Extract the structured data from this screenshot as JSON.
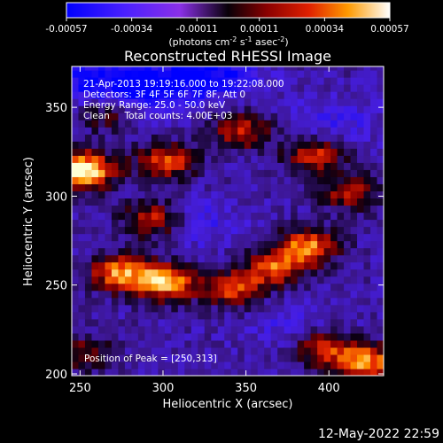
{
  "chart_data": {
    "type": "heatmap",
    "title": "Reconstructed RHESSI Image",
    "xlabel": "Heliocentric X (arcsec)",
    "ylabel": "Heliocentric Y (arcsec)",
    "xlim": [
      245,
      433
    ],
    "ylim": [
      199,
      373
    ],
    "x_ticks": [
      250,
      300,
      350,
      400
    ],
    "y_ticks": [
      200,
      250,
      300,
      350
    ],
    "colorbar": {
      "min": -0.00057,
      "max": 0.00057,
      "tick_values": [
        -0.00057,
        -0.00034,
        -0.00011,
        0.00011,
        0.00034,
        0.00057
      ],
      "tick_labels": [
        "-0.00057",
        "-0.00034",
        "-0.00011",
        "0.00011",
        "0.00034",
        "0.00057"
      ],
      "label_prefix": "(photons cm",
      "exp1": "-2",
      "label_mid": " s",
      "exp2": "-1",
      "label_mid2": " asec",
      "exp3": "-2",
      "label_suffix": ")"
    },
    "info_lines": [
      "21-Apr-2013 19:19:16.000 to 19:22:08.000",
      "Detectors: 3F 4F 5F 6F 7F 8F, Att 0",
      "Energy Range: 25.0 - 50.0 keV",
      "Clean     Total counts: 4.00E+03"
    ],
    "peak_label": "Position of Peak = [250,313]",
    "peak": [
      250,
      313
    ],
    "bright_regions": [
      {
        "x": 250,
        "y": 313,
        "intensity": 1.0
      },
      {
        "x": 300,
        "y": 250,
        "intensity": 0.8
      },
      {
        "x": 272,
        "y": 255,
        "intensity": 0.7
      },
      {
        "x": 340,
        "y": 246,
        "intensity": 0.55
      },
      {
        "x": 385,
        "y": 270,
        "intensity": 0.7
      },
      {
        "x": 420,
        "y": 205,
        "intensity": 0.75
      },
      {
        "x": 300,
        "y": 318,
        "intensity": 0.6
      },
      {
        "x": 345,
        "y": 335,
        "intensity": 0.5
      },
      {
        "x": 390,
        "y": 322,
        "intensity": 0.55
      },
      {
        "x": 292,
        "y": 285,
        "intensity": 0.55
      },
      {
        "x": 395,
        "y": 213,
        "intensity": 0.5
      },
      {
        "x": 365,
        "y": 258,
        "intensity": 0.6
      },
      {
        "x": 265,
        "y": 345,
        "intensity": 0.35
      },
      {
        "x": 410,
        "y": 300,
        "intensity": 0.45
      },
      {
        "x": 250,
        "y": 210,
        "intensity": 0.35
      }
    ],
    "negative_regions": [
      {
        "x": 290,
        "y": 360,
        "intensity": 0.85
      },
      {
        "x": 330,
        "y": 368,
        "intensity": 0.6
      },
      {
        "x": 250,
        "y": 362,
        "intensity": 0.5
      },
      {
        "x": 400,
        "y": 340,
        "intensity": 0.35
      },
      {
        "x": 320,
        "y": 283,
        "intensity": 0.3
      },
      {
        "x": 375,
        "y": 225,
        "intensity": 0.25
      }
    ]
  },
  "footer": {
    "date": "12-May-2022 22:59"
  }
}
